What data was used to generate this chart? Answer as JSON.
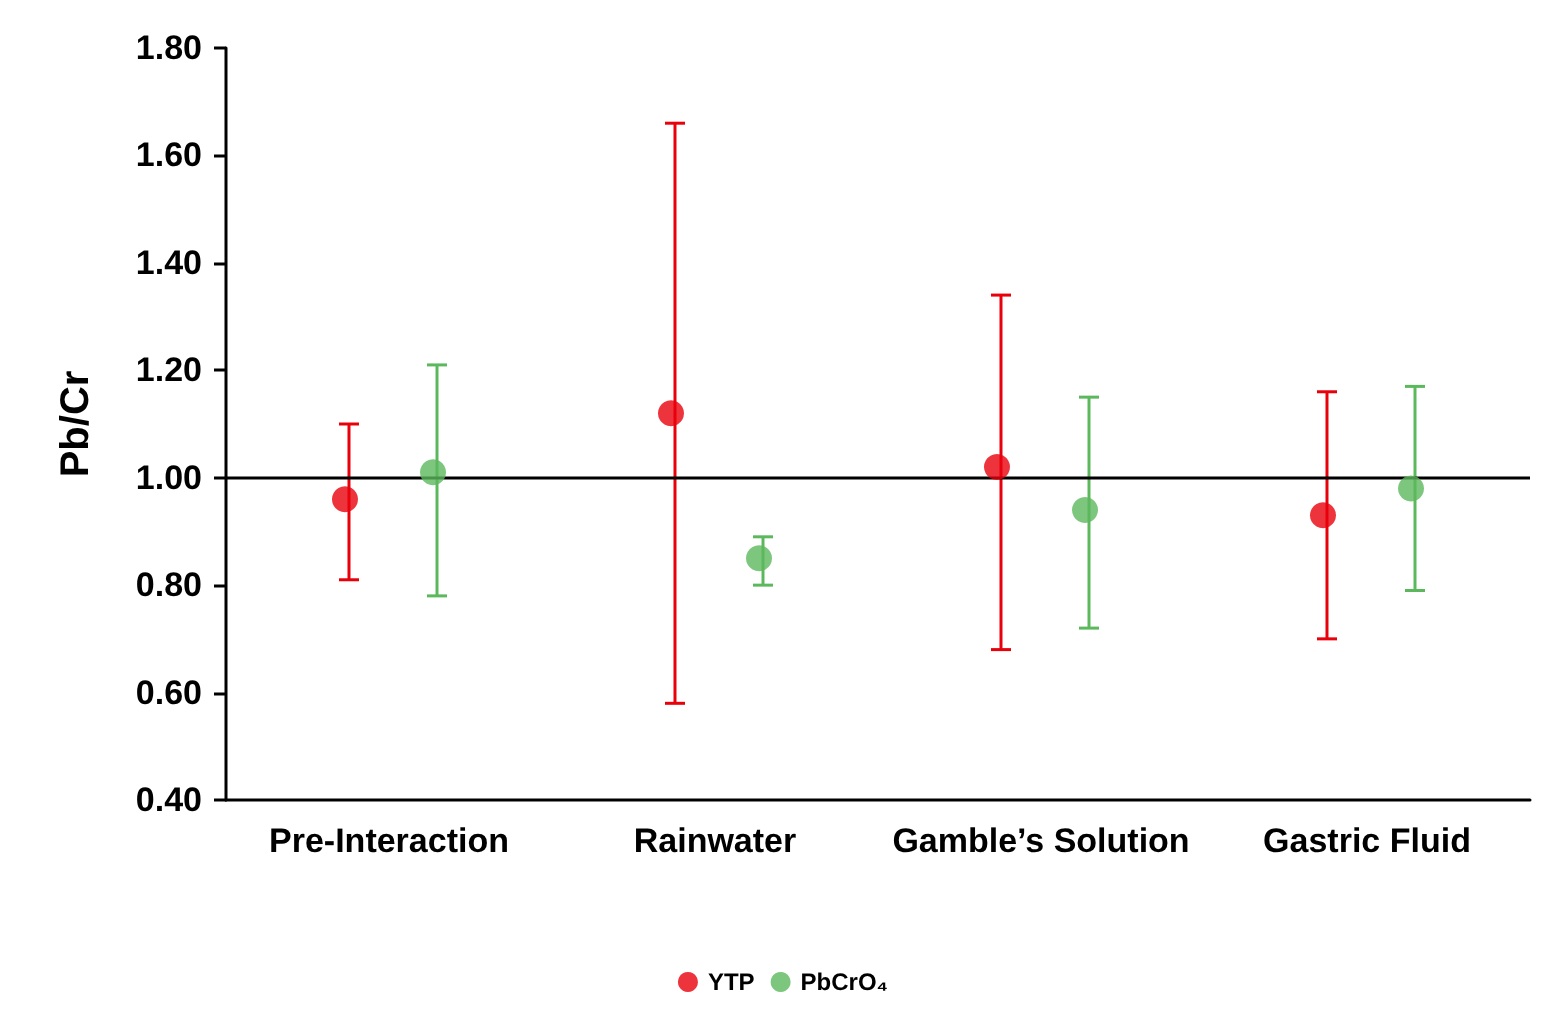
{
  "chart_data": {
    "type": "scatter",
    "ylabel": "Pb/Cr",
    "categories": [
      "Pre-Interaction",
      "Rainwater",
      "Gamble’s Solution",
      "Gastric Fluid"
    ],
    "series": [
      {
        "name": "YTP",
        "color": "#e8000b",
        "values": [
          0.96,
          1.12,
          1.02,
          0.93
        ],
        "errors": [
          [
            0.81,
            1.1
          ],
          [
            0.58,
            1.66
          ],
          [
            0.68,
            1.34
          ],
          [
            0.7,
            1.16
          ]
        ]
      },
      {
        "name": "PbCrO₄",
        "color": "#5cb85c",
        "values": [
          1.01,
          0.85,
          0.94,
          0.98
        ],
        "errors": [
          [
            0.78,
            1.21
          ],
          [
            0.8,
            0.89
          ],
          [
            0.72,
            1.15
          ],
          [
            0.79,
            1.17
          ]
        ]
      }
    ],
    "ylim": [
      0.4,
      1.8
    ],
    "yticks": [
      {
        "value": 0.4,
        "label": "0.40"
      },
      {
        "value": 0.6,
        "label": "0.60"
      },
      {
        "value": 0.8,
        "label": "0.80"
      },
      {
        "value": 1.0,
        "label": "1.00"
      },
      {
        "value": 1.2,
        "label": "1.20"
      },
      {
        "value": 1.4,
        "label": "1.40"
      },
      {
        "value": 1.6,
        "label": "1.60"
      },
      {
        "value": 1.8,
        "label": "1.80"
      }
    ],
    "ref_lines": [
      {
        "axis": "y",
        "value": 1.0,
        "color": "#000000"
      }
    ],
    "grid": false,
    "legend": "bottom",
    "marker": "circle"
  }
}
